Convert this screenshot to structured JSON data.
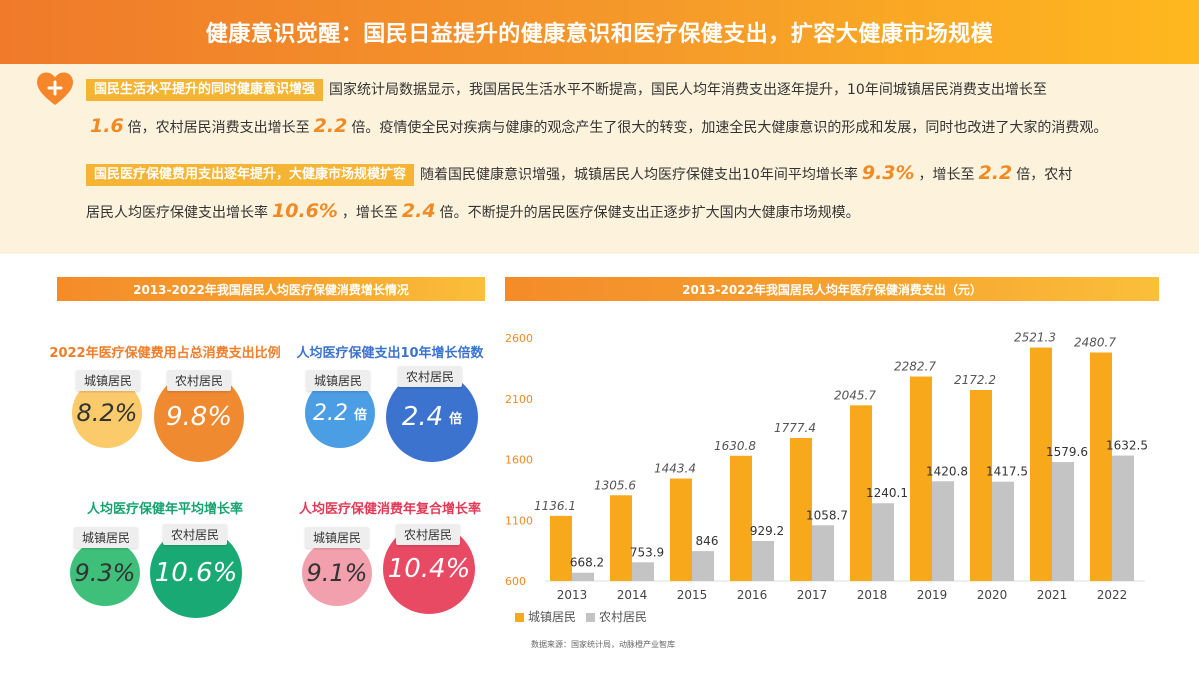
{
  "title": "健康意识觉醒：国民日益提升的健康意识和医疗保健支出，扩容大健康市场规模",
  "intro": {
    "p1": {
      "tag": "国民生活水平提升的同时健康意识增强",
      "t1": "国家统计局数据显示，我国居民生活水平不断提高，国民人均年消费支出逐年提升，10年间城镇居民消费支出增长至",
      "n1": "1.6",
      "t2": "倍，农村居民消费支出增长至",
      "n2": "2.2",
      "t3": "倍。疫情使全民对疾病与健康的观念产生了很大的转变，加速全民大健康意识的形成和发展，同时也改进了大家的消费观。"
    },
    "p2": {
      "tag": "国民医疗保健费用支出逐年提升，大健康市场规模扩容",
      "t1": "随着国民健康意识增强，城镇居民人均医疗保健支出10年间平均增长率",
      "n1": "9.3%",
      "t2": "，增长至",
      "n2": "2.2",
      "t3": "倍，农村居民人均医疗保健支出增长率",
      "n3": "10.6%",
      "t4": "，增长至",
      "n4": "2.4",
      "t5": "倍。不断提升的居民医疗保健支出正逐步扩大国内大健康市场规模。"
    }
  },
  "left_section": {
    "header": "2013-2022年我国居民人均医疗保健消费增长情况",
    "urban_label": "城镇居民",
    "rural_label": "农村居民",
    "bei": "倍",
    "g1": {
      "title": "2022年医疗保健费用占总消费支出比例",
      "urban": "8.2%",
      "rural": "9.8%",
      "urban_color": "#fbcb6b",
      "rural_color": "#f08a30",
      "title_color": "#f07d2a"
    },
    "g2": {
      "title": "人均医疗保健支出10年增长倍数",
      "urban": "2.2",
      "rural": "2.4",
      "urban_color": "#4b9de4",
      "rural_color": "#3b73cf",
      "title_color": "#3b73cf"
    },
    "g3": {
      "title": "人均医疗保健年平均增长率",
      "urban": "9.3%",
      "rural": "10.6%",
      "urban_color": "#3ec07a",
      "rural_color": "#19a975",
      "title_color": "#17a36f"
    },
    "g4": {
      "title": "人均医疗保健消费年复合增长率",
      "urban": "9.1%",
      "rural": "10.4%",
      "urban_color": "#f2a0ae",
      "rural_color": "#e84a64",
      "title_color": "#e23a56"
    }
  },
  "right_section": {
    "header": "2013-2022年我国居民人均年医疗保健消费支出（元）"
  },
  "chart_data": {
    "type": "bar",
    "categories": [
      "2013",
      "2014",
      "2015",
      "2016",
      "2017",
      "2018",
      "2019",
      "2020",
      "2021",
      "2022"
    ],
    "series": [
      {
        "name": "城镇居民",
        "color": "#f7a81b",
        "values": [
          1136.1,
          1305.6,
          1443.4,
          1630.8,
          1777.4,
          2045.7,
          2282.7,
          2172.2,
          2521.3,
          2480.7
        ]
      },
      {
        "name": "农村居民",
        "color": "#c4c4c4",
        "values": [
          668.2,
          753.9,
          846,
          929.2,
          1058.7,
          1240.1,
          1420.8,
          1417.5,
          1579.6,
          1632.5
        ]
      }
    ],
    "ylim": [
      600,
      2600
    ],
    "yticks": [
      "600",
      "1100",
      "1600",
      "2100",
      "2600"
    ],
    "grid": false,
    "legend": "bottom-left"
  },
  "source": "数据来源：国家统计局，动脉橙产业智库"
}
